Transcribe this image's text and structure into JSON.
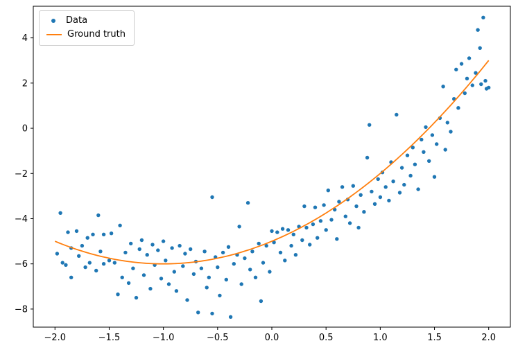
{
  "chart_data": {
    "type": "scatter",
    "title": "",
    "xlabel": "",
    "ylabel": "",
    "xlim": [
      -2.2,
      2.2
    ],
    "ylim": [
      -8.8,
      5.4
    ],
    "grid": false,
    "legend_position": "upper left",
    "xticks": [
      -2.0,
      -1.5,
      -1.0,
      -0.5,
      0.0,
      0.5,
      1.0,
      1.5,
      2.0
    ],
    "xtick_labels": [
      "−2.0",
      "−1.5",
      "−1.0",
      "−0.5",
      "0.0",
      "0.5",
      "1.0",
      "1.5",
      "2.0"
    ],
    "yticks": [
      -8,
      -6,
      -4,
      -2,
      0,
      2,
      4
    ],
    "ytick_labels": [
      "−8",
      "−6",
      "−4",
      "−2",
      "0",
      "2",
      "4"
    ],
    "series": [
      {
        "name": "Data",
        "type": "scatter",
        "color": "#1f77b4",
        "marker": "dot",
        "points": [
          [
            -1.98,
            -5.55
          ],
          [
            -1.95,
            -3.75
          ],
          [
            -1.93,
            -5.95
          ],
          [
            -1.9,
            -6.05
          ],
          [
            -1.88,
            -4.6
          ],
          [
            -1.85,
            -5.3
          ],
          [
            -1.85,
            -6.6
          ],
          [
            -1.8,
            -4.55
          ],
          [
            -1.78,
            -5.65
          ],
          [
            -1.75,
            -5.2
          ],
          [
            -1.72,
            -6.15
          ],
          [
            -1.7,
            -4.85
          ],
          [
            -1.68,
            -5.95
          ],
          [
            -1.65,
            -4.7
          ],
          [
            -1.62,
            -6.3
          ],
          [
            -1.6,
            -3.85
          ],
          [
            -1.58,
            -5.45
          ],
          [
            -1.55,
            -4.7
          ],
          [
            -1.55,
            -6.0
          ],
          [
            -1.5,
            -5.85
          ],
          [
            -1.48,
            -4.65
          ],
          [
            -1.45,
            -5.95
          ],
          [
            -1.42,
            -7.35
          ],
          [
            -1.4,
            -4.3
          ],
          [
            -1.38,
            -6.6
          ],
          [
            -1.35,
            -5.5
          ],
          [
            -1.32,
            -6.85
          ],
          [
            -1.3,
            -5.1
          ],
          [
            -1.28,
            -6.2
          ],
          [
            -1.25,
            -7.5
          ],
          [
            -1.22,
            -5.35
          ],
          [
            -1.2,
            -4.95
          ],
          [
            -1.18,
            -6.5
          ],
          [
            -1.15,
            -5.6
          ],
          [
            -1.12,
            -7.1
          ],
          [
            -1.1,
            -5.15
          ],
          [
            -1.08,
            -6.05
          ],
          [
            -1.05,
            -5.4
          ],
          [
            -1.02,
            -6.65
          ],
          [
            -1.0,
            -5.0
          ],
          [
            -0.98,
            -5.85
          ],
          [
            -0.95,
            -6.9
          ],
          [
            -0.92,
            -5.3
          ],
          [
            -0.9,
            -6.35
          ],
          [
            -0.88,
            -7.2
          ],
          [
            -0.85,
            -5.2
          ],
          [
            -0.82,
            -6.1
          ],
          [
            -0.8,
            -5.55
          ],
          [
            -0.78,
            -7.6
          ],
          [
            -0.75,
            -5.35
          ],
          [
            -0.72,
            -6.45
          ],
          [
            -0.7,
            -5.9
          ],
          [
            -0.68,
            -8.15
          ],
          [
            -0.65,
            -6.2
          ],
          [
            -0.62,
            -5.45
          ],
          [
            -0.6,
            -7.05
          ],
          [
            -0.58,
            -6.6
          ],
          [
            -0.55,
            -3.05
          ],
          [
            -0.55,
            -8.2
          ],
          [
            -0.52,
            -5.7
          ],
          [
            -0.5,
            -6.15
          ],
          [
            -0.48,
            -7.4
          ],
          [
            -0.45,
            -5.5
          ],
          [
            -0.42,
            -6.7
          ],
          [
            -0.4,
            -5.25
          ],
          [
            -0.38,
            -8.35
          ],
          [
            -0.35,
            -6.0
          ],
          [
            -0.32,
            -5.6
          ],
          [
            -0.3,
            -4.35
          ],
          [
            -0.28,
            -6.9
          ],
          [
            -0.25,
            -5.75
          ],
          [
            -0.22,
            -3.3
          ],
          [
            -0.2,
            -6.25
          ],
          [
            -0.18,
            -5.45
          ],
          [
            -0.15,
            -6.6
          ],
          [
            -0.12,
            -5.1
          ],
          [
            -0.1,
            -7.65
          ],
          [
            -0.08,
            -5.95
          ],
          [
            -0.05,
            -5.2
          ],
          [
            -0.02,
            -6.35
          ],
          [
            0.0,
            -4.55
          ],
          [
            0.02,
            -5.05
          ],
          [
            0.05,
            -4.6
          ],
          [
            0.08,
            -5.5
          ],
          [
            0.1,
            -4.45
          ],
          [
            0.12,
            -5.85
          ],
          [
            0.15,
            -4.5
          ],
          [
            0.18,
            -5.2
          ],
          [
            0.2,
            -4.7
          ],
          [
            0.22,
            -5.6
          ],
          [
            0.25,
            -4.35
          ],
          [
            0.28,
            -4.95
          ],
          [
            0.3,
            -3.45
          ],
          [
            0.32,
            -4.4
          ],
          [
            0.35,
            -5.15
          ],
          [
            0.38,
            -4.25
          ],
          [
            0.4,
            -3.5
          ],
          [
            0.42,
            -4.85
          ],
          [
            0.45,
            -4.1
          ],
          [
            0.48,
            -3.4
          ],
          [
            0.5,
            -4.5
          ],
          [
            0.52,
            -2.75
          ],
          [
            0.55,
            -4.05
          ],
          [
            0.58,
            -3.6
          ],
          [
            0.6,
            -4.9
          ],
          [
            0.62,
            -3.25
          ],
          [
            0.65,
            -2.6
          ],
          [
            0.68,
            -3.9
          ],
          [
            0.7,
            -3.15
          ],
          [
            0.72,
            -4.2
          ],
          [
            0.75,
            -2.55
          ],
          [
            0.78,
            -3.45
          ],
          [
            0.8,
            -4.4
          ],
          [
            0.82,
            -2.95
          ],
          [
            0.85,
            -3.7
          ],
          [
            0.88,
            -1.3
          ],
          [
            0.9,
            0.15
          ],
          [
            0.92,
            -2.8
          ],
          [
            0.95,
            -3.35
          ],
          [
            0.98,
            -2.25
          ],
          [
            1.0,
            -3.05
          ],
          [
            1.02,
            -1.95
          ],
          [
            1.05,
            -2.6
          ],
          [
            1.08,
            -3.2
          ],
          [
            1.1,
            -1.5
          ],
          [
            1.12,
            -2.35
          ],
          [
            1.15,
            0.6
          ],
          [
            1.18,
            -2.85
          ],
          [
            1.2,
            -1.75
          ],
          [
            1.22,
            -2.5
          ],
          [
            1.25,
            -1.2
          ],
          [
            1.28,
            -2.1
          ],
          [
            1.3,
            -0.85
          ],
          [
            1.32,
            -1.6
          ],
          [
            1.35,
            -2.7
          ],
          [
            1.38,
            -0.5
          ],
          [
            1.4,
            -1.05
          ],
          [
            1.42,
            0.05
          ],
          [
            1.45,
            -1.45
          ],
          [
            1.48,
            -0.3
          ],
          [
            1.5,
            -2.15
          ],
          [
            1.52,
            -0.7
          ],
          [
            1.55,
            0.45
          ],
          [
            1.58,
            1.85
          ],
          [
            1.6,
            -0.95
          ],
          [
            1.62,
            0.25
          ],
          [
            1.65,
            -0.15
          ],
          [
            1.68,
            1.3
          ],
          [
            1.7,
            2.6
          ],
          [
            1.72,
            0.9
          ],
          [
            1.75,
            2.85
          ],
          [
            1.78,
            1.55
          ],
          [
            1.8,
            2.2
          ],
          [
            1.82,
            3.1
          ],
          [
            1.85,
            1.9
          ],
          [
            1.88,
            2.45
          ],
          [
            1.9,
            4.35
          ],
          [
            1.92,
            3.55
          ],
          [
            1.93,
            1.95
          ],
          [
            1.95,
            4.9
          ],
          [
            1.97,
            2.1
          ],
          [
            1.98,
            1.75
          ],
          [
            2.0,
            1.8
          ]
        ]
      },
      {
        "name": "Ground truth",
        "type": "line",
        "color": "#ff7f0e",
        "formula": "y = x^2 + 2x - 5",
        "poly_coefficients": [
          1,
          2,
          -5
        ],
        "x_range": [
          -2.0,
          2.0
        ]
      }
    ]
  },
  "legend": {
    "data_label": "Data",
    "ground_truth_label": "Ground truth"
  }
}
